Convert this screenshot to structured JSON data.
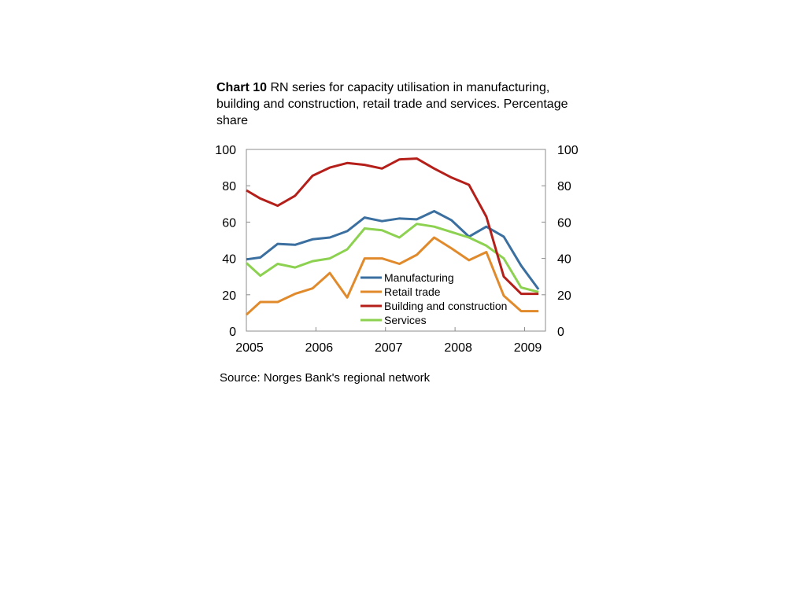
{
  "title": {
    "label": "Chart 10",
    "text": "RN series for capacity utilisation in manufacturing, building and construction, retail trade and services. Percentage share"
  },
  "source": "Source: Norges Bank's regional network",
  "chart_data": {
    "type": "line",
    "x_axis": {
      "min": 2005,
      "max": 2009.3,
      "tick_labels": [
        "2005",
        "2006",
        "2007",
        "2008",
        "2009"
      ],
      "ticks": [
        2005,
        2006,
        2007,
        2008,
        2009
      ]
    },
    "y_axis_left": {
      "min": 0,
      "max": 100,
      "ticks": [
        0,
        20,
        40,
        60,
        80,
        100
      ]
    },
    "y_axis_right": {
      "min": 0,
      "max": 100,
      "ticks": [
        0,
        20,
        40,
        60,
        80,
        100
      ]
    },
    "grid": false,
    "legend_placement": "lower-center",
    "x": [
      2005.0,
      2005.2,
      2005.45,
      2005.7,
      2005.95,
      2006.2,
      2006.45,
      2006.7,
      2006.95,
      2007.2,
      2007.45,
      2007.7,
      2007.95,
      2008.2,
      2008.45,
      2008.7,
      2008.95,
      2009.2
    ],
    "series": [
      {
        "name": "Manufacturing",
        "color": "#3A6FA0",
        "values": [
          39.5,
          40.5,
          48,
          47.5,
          50.5,
          51.5,
          55,
          62.5,
          60.5,
          62,
          61.5,
          66,
          61,
          52,
          57.5,
          52,
          36,
          23
        ]
      },
      {
        "name": "Retail trade",
        "color": "#E08A2C",
        "values": [
          9,
          16,
          16,
          20.5,
          23.5,
          32,
          18.5,
          40,
          40,
          37,
          42,
          51.5,
          45.5,
          39,
          43.5,
          19.5,
          11,
          11
        ]
      },
      {
        "name": "Building and construction",
        "color": "#B51F1A",
        "values": [
          77.5,
          73,
          69,
          74.5,
          85.5,
          90,
          92.5,
          91.5,
          89.5,
          94.5,
          95,
          89.5,
          84.5,
          80.5,
          63,
          30,
          20.5,
          20.5
        ]
      },
      {
        "name": "Services",
        "color": "#8CD14F",
        "values": [
          37.5,
          30.5,
          37,
          35,
          38.5,
          40,
          45,
          56.5,
          55.5,
          51.5,
          59,
          57.5,
          54.5,
          51.5,
          47,
          40,
          24,
          21.5
        ]
      }
    ]
  }
}
